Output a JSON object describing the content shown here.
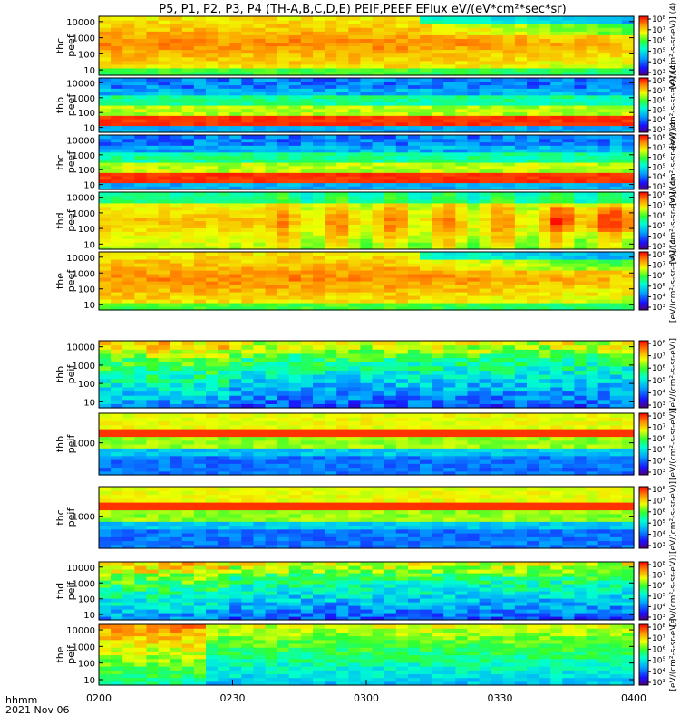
{
  "chart_data": {
    "type": "heatmap",
    "title": "P5, P1, P2, P3, P4 (TH-A,B,C,D,E) PEIF,PEEF EFlux eV/(eV*cm²*sec*sr)",
    "time_axis": {
      "label_line1": "hhmm",
      "label_line2": "2021 Nov 06",
      "range": [
        "0200",
        "0400"
      ],
      "ticks": [
        "0200",
        "0230",
        "0300",
        "0330",
        "0400"
      ]
    },
    "colorbar": {
      "ticks": [
        "10³",
        "10⁴",
        "10⁵",
        "10⁶",
        "10⁷",
        "10⁸"
      ],
      "label_short": "[eV/(cm²-s-sr-eV)]",
      "label_mid": "[eV/(cm²-s-sr-eV)] (4",
      "label_long": "[eV/(cm²-s-sr-eV)] (4)"
    },
    "panels": [
      {
        "probe": "thc",
        "product": "peef",
        "yticks": [
          "10",
          "100",
          "1000",
          "10000"
        ],
        "colorbar_label": "[eV/(cm²-s-sr-eV)] (4)",
        "pattern": "electron_active"
      },
      {
        "probe": "thb",
        "product": "peef",
        "yticks": [
          "10",
          "100",
          "1000",
          "10000"
        ],
        "colorbar_label": "[eV/(cm²-s-sr-eV)] (4)",
        "pattern": "electron_banded"
      },
      {
        "probe": "thc",
        "product": "peef",
        "yticks": [
          "10",
          "100",
          "1000",
          "10000"
        ],
        "colorbar_label": "[eV/(cm²-s-sr-eV)] (4)",
        "pattern": "electron_banded"
      },
      {
        "probe": "thd",
        "product": "peef",
        "yticks": [
          "10",
          "100",
          "1000",
          "10000"
        ],
        "colorbar_label": "[eV/(cm²-s-sr-eV)] (4)",
        "pattern": "electron_wave"
      },
      {
        "probe": "the",
        "product": "peef",
        "yticks": [
          "10",
          "100",
          "1000",
          "10000"
        ],
        "colorbar_label": "[eV/(cm²-s-sr-eV)] (4",
        "pattern": "electron_active"
      },
      {
        "probe": "thb",
        "product": "peif",
        "yticks": [
          "10",
          "100",
          "1000",
          "10000"
        ],
        "colorbar_label": "[eV/(cm²-s-sr-eV)]",
        "pattern": "ion"
      },
      {
        "probe": "thb",
        "product": "peif",
        "yticks": [
          "1000"
        ],
        "colorbar_label": "[eV/(cm²-s-sr-eV)]",
        "pattern": "ion_banded"
      },
      {
        "probe": "thc",
        "product": "peif",
        "yticks": [
          "1000"
        ],
        "colorbar_label": "[eV/(cm²-s-sr-eV)]",
        "pattern": "ion_banded"
      },
      {
        "probe": "thd",
        "product": "peif",
        "yticks": [
          "10",
          "100",
          "1000",
          "10000"
        ],
        "colorbar_label": "[eV/(cm²-s-sr-eV)]",
        "pattern": "ion"
      },
      {
        "probe": "the",
        "product": "peif",
        "yticks": [
          "10",
          "100",
          "1000",
          "10000"
        ],
        "colorbar_label": "[eV/(cm²-s-sr-eV)]",
        "pattern": "ion_green"
      }
    ]
  }
}
